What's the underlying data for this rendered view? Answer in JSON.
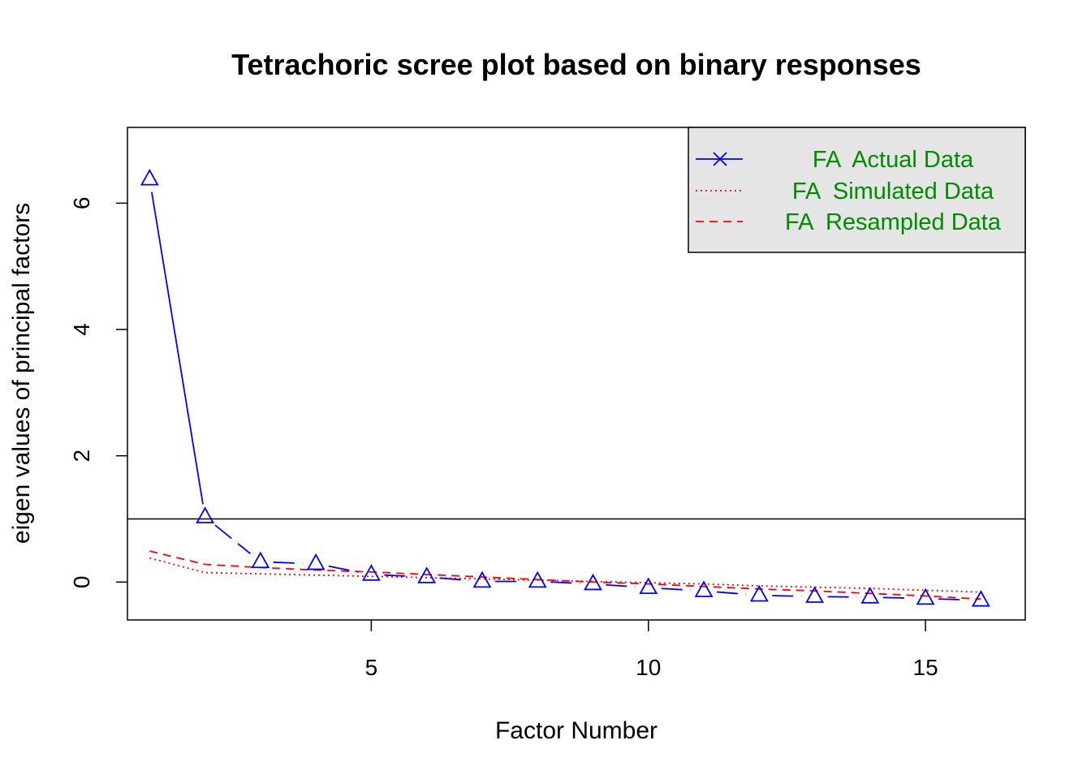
{
  "chart_data": {
    "type": "line",
    "title": "Tetrachoric scree plot based on binary responses",
    "xlabel": "Factor Number",
    "ylabel": "eigen values of principal factors",
    "xlim": [
      0.6,
      16.8
    ],
    "ylim": [
      -0.6,
      7.2
    ],
    "xticks": [
      5,
      10,
      15
    ],
    "yticks": [
      0,
      2,
      4,
      6
    ],
    "reference_line": 1,
    "grid": false,
    "legend_position": "top-right",
    "x": [
      1,
      2,
      3,
      4,
      5,
      6,
      7,
      8,
      9,
      10,
      11,
      12,
      13,
      14,
      15,
      16
    ],
    "series": [
      {
        "name": "FA  Actual Data",
        "values": [
          6.38,
          1.03,
          0.32,
          0.29,
          0.12,
          0.08,
          0.01,
          0.01,
          -0.03,
          -0.09,
          -0.14,
          -0.21,
          -0.23,
          -0.24,
          -0.26,
          -0.29
        ],
        "color": "#0000ff",
        "style": "solid-then-dashed",
        "marker": "triangle"
      },
      {
        "name": "FA  Simulated Data",
        "values": [
          0.38,
          0.15,
          0.13,
          0.11,
          0.09,
          0.07,
          0.05,
          0.03,
          0.01,
          -0.01,
          -0.03,
          -0.06,
          -0.08,
          -0.1,
          -0.13,
          -0.16
        ],
        "color": "#ff0000",
        "style": "dotted"
      },
      {
        "name": "FA  Resampled Data",
        "values": [
          0.49,
          0.28,
          0.23,
          0.19,
          0.16,
          0.12,
          0.08,
          0.04,
          0.0,
          -0.03,
          -0.07,
          -0.11,
          -0.14,
          -0.18,
          -0.22,
          -0.27
        ],
        "color": "#ff0000",
        "style": "dashed"
      }
    ],
    "legend_background": "#e5e5e5",
    "legend_text_color": "#008b00"
  }
}
